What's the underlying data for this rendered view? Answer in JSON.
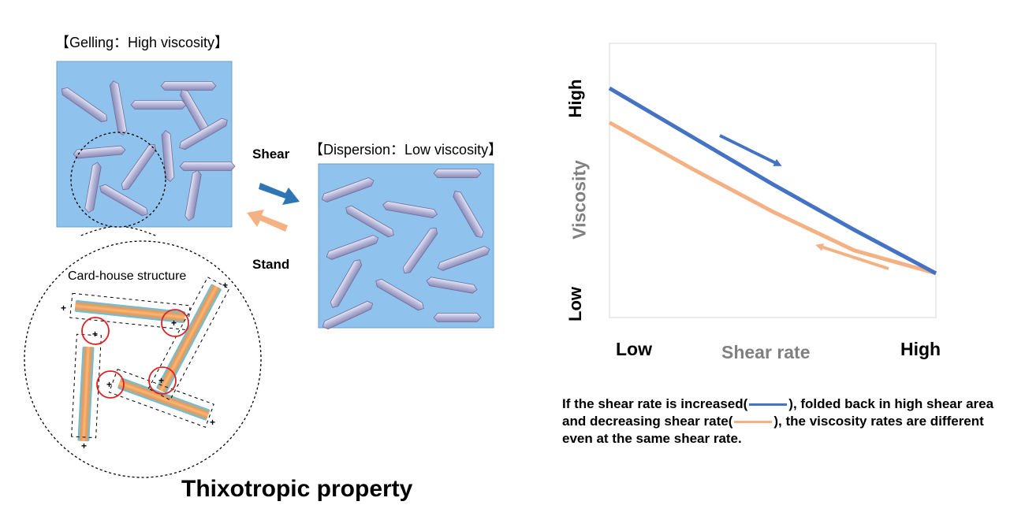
{
  "gelling_title": "【Gelling：High viscosity】",
  "dispersion_title": "【Dispersion：Low viscosity】",
  "shear_label": "Shear",
  "stand_label": "Stand",
  "cardhouse_label": "Card-house structure",
  "main_title": "Thixotropic property",
  "chart_data": {
    "type": "line",
    "y_ticks": [
      "High",
      "Low"
    ],
    "ylabel": "Viscosity",
    "x_ticks": [
      "Low",
      "High"
    ],
    "xlabel": "Shear rate",
    "series": [
      {
        "color": "#4472C4",
        "x": [
          0.0,
          0.25,
          0.5,
          0.75,
          1.0
        ],
        "y": [
          1.0,
          0.79,
          0.58,
          0.38,
          0.19
        ]
      },
      {
        "color": "#F4B183",
        "x": [
          0.0,
          0.25,
          0.5,
          0.75,
          1.0
        ],
        "y": [
          0.85,
          0.65,
          0.46,
          0.29,
          0.19
        ]
      }
    ]
  },
  "note": {
    "part1": "If the shear rate is increased(",
    "part2": "), folded back in high shear area and decreasing shear rate(",
    "part3": "), the viscosity rates are different even at the same shear rate."
  },
  "colors": {
    "panel_bg": "#8FC3EE",
    "increase_line": "#4472C4",
    "decrease_line": "#F4B183",
    "shear_arrow": "#2E75B6",
    "stand_arrow": "#F4B183",
    "circle_marker": "#E02020"
  }
}
